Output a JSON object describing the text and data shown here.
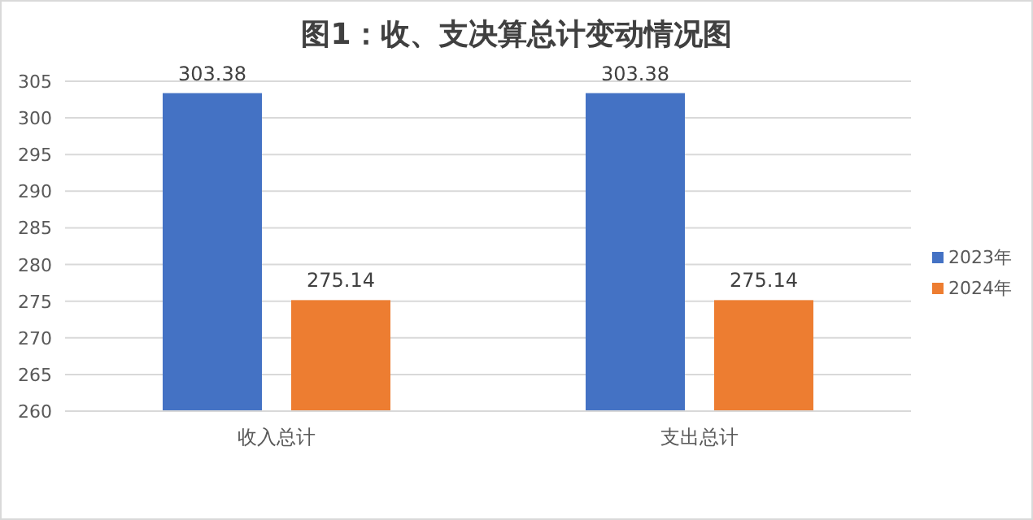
{
  "chart_data": {
    "type": "bar",
    "title": "图1：收、支决算总计变动情况图",
    "categories": [
      "收入总计",
      "支出总计"
    ],
    "series": [
      {
        "name": "2023年",
        "color": "#4472c4",
        "values": [
          303.38,
          303.38
        ]
      },
      {
        "name": "2024年",
        "color": "#ed7d31",
        "values": [
          275.14,
          275.14
        ]
      }
    ],
    "ylim": [
      260,
      305
    ],
    "yticks": [
      260,
      265,
      270,
      275,
      280,
      285,
      290,
      295,
      300,
      305
    ],
    "grid": "y",
    "legend": "right",
    "data_labels": true
  }
}
